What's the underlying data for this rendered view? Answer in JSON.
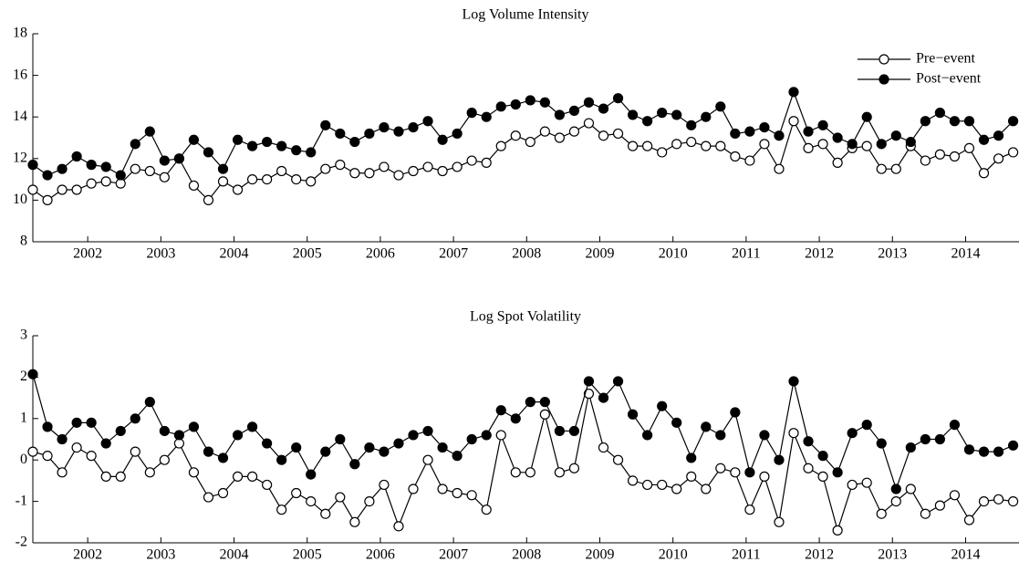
{
  "chart_data": [
    {
      "type": "line",
      "title": "Log Volume Intensity",
      "x": [
        2001.25,
        2001.45,
        2001.65,
        2001.85,
        2002.05,
        2002.25,
        2002.45,
        2002.65,
        2002.85,
        2003.05,
        2003.25,
        2003.45,
        2003.65,
        2003.85,
        2004.05,
        2004.25,
        2004.45,
        2004.65,
        2004.85,
        2005.05,
        2005.25,
        2005.45,
        2005.65,
        2005.85,
        2006.05,
        2006.25,
        2006.45,
        2006.65,
        2006.85,
        2007.05,
        2007.25,
        2007.45,
        2007.65,
        2007.85,
        2008.05,
        2008.25,
        2008.45,
        2008.65,
        2008.85,
        2009.05,
        2009.25,
        2009.45,
        2009.65,
        2009.85,
        2010.05,
        2010.25,
        2010.45,
        2010.65,
        2010.85,
        2011.05,
        2011.25,
        2011.45,
        2011.65,
        2011.85,
        2012.05,
        2012.25,
        2012.45,
        2012.65,
        2012.85,
        2013.05,
        2013.25,
        2013.45,
        2013.65,
        2013.85,
        2014.05,
        2014.25,
        2014.45,
        2014.65
      ],
      "series": [
        {
          "name": "Pre−event",
          "color": "#000000",
          "marker_fill": "#ffffff",
          "values": [
            10.5,
            10.0,
            10.5,
            10.5,
            10.8,
            10.9,
            10.8,
            11.5,
            11.4,
            11.1,
            12.0,
            10.7,
            10.0,
            10.9,
            10.5,
            11.0,
            11.0,
            11.4,
            11.0,
            10.9,
            11.5,
            11.7,
            11.3,
            11.3,
            11.6,
            11.2,
            11.4,
            11.6,
            11.4,
            11.6,
            11.9,
            11.8,
            12.6,
            13.1,
            12.8,
            13.3,
            13.0,
            13.3,
            13.7,
            13.1,
            13.2,
            12.6,
            12.6,
            12.3,
            12.7,
            12.8,
            12.6,
            12.6,
            12.1,
            11.9,
            12.7,
            11.5,
            13.8,
            12.5,
            12.7,
            11.8,
            12.5,
            12.6,
            11.5,
            11.5,
            12.6,
            11.9,
            12.2,
            12.1,
            12.5,
            11.3,
            12.0,
            12.3
          ]
        },
        {
          "name": "Post−event",
          "color": "#000000",
          "marker_fill": "#000000",
          "values": [
            11.7,
            11.2,
            11.5,
            12.1,
            11.7,
            11.6,
            11.2,
            12.7,
            13.3,
            11.9,
            12.0,
            12.9,
            12.3,
            11.5,
            12.9,
            12.6,
            12.8,
            12.6,
            12.4,
            12.3,
            13.6,
            13.2,
            12.8,
            13.2,
            13.5,
            13.3,
            13.5,
            13.8,
            12.9,
            13.2,
            14.2,
            14.0,
            14.5,
            14.6,
            14.8,
            14.7,
            14.1,
            14.3,
            14.7,
            14.4,
            14.9,
            14.1,
            13.8,
            14.2,
            14.1,
            13.6,
            14.0,
            14.5,
            13.2,
            13.3,
            13.5,
            13.1,
            15.2,
            13.3,
            13.6,
            13.0,
            12.7,
            14.0,
            12.7,
            13.1,
            12.8,
            13.8,
            14.2,
            13.8,
            13.8,
            12.9,
            13.1,
            13.8
          ]
        }
      ],
      "xlim": [
        2001.25,
        2014.73
      ],
      "xticks": [
        2002,
        2003,
        2004,
        2005,
        2006,
        2007,
        2008,
        2009,
        2010,
        2011,
        2012,
        2013,
        2014
      ],
      "ylim": [
        8,
        18
      ],
      "yticks": [
        8,
        10,
        12,
        14,
        16,
        18
      ],
      "legend": "upper right"
    },
    {
      "type": "line",
      "title": "Log Spot Volatility",
      "x": [
        2001.25,
        2001.45,
        2001.65,
        2001.85,
        2002.05,
        2002.25,
        2002.45,
        2002.65,
        2002.85,
        2003.05,
        2003.25,
        2003.45,
        2003.65,
        2003.85,
        2004.05,
        2004.25,
        2004.45,
        2004.65,
        2004.85,
        2005.05,
        2005.25,
        2005.45,
        2005.65,
        2005.85,
        2006.05,
        2006.25,
        2006.45,
        2006.65,
        2006.85,
        2007.05,
        2007.25,
        2007.45,
        2007.65,
        2007.85,
        2008.05,
        2008.25,
        2008.45,
        2008.65,
        2008.85,
        2009.05,
        2009.25,
        2009.45,
        2009.65,
        2009.85,
        2010.05,
        2010.25,
        2010.45,
        2010.65,
        2010.85,
        2011.05,
        2011.25,
        2011.45,
        2011.65,
        2011.85,
        2012.05,
        2012.25,
        2012.45,
        2012.65,
        2012.85,
        2013.05,
        2013.25,
        2013.45,
        2013.65,
        2013.85,
        2014.05,
        2014.25,
        2014.45,
        2014.65
      ],
      "series": [
        {
          "color": "#000000",
          "marker_fill": "#ffffff",
          "values": [
            0.2,
            0.1,
            -0.3,
            0.3,
            0.1,
            -0.4,
            -0.4,
            0.2,
            -0.3,
            0.0,
            0.4,
            -0.3,
            -0.9,
            -0.8,
            -0.4,
            -0.4,
            -0.6,
            -1.2,
            -0.8,
            -1.0,
            -1.3,
            -0.9,
            -1.5,
            -1.0,
            -0.6,
            -1.6,
            -0.7,
            0.0,
            -0.7,
            -0.8,
            -0.85,
            -1.2,
            0.6,
            -0.3,
            -0.3,
            1.1,
            -0.3,
            -0.2,
            1.6,
            0.3,
            0.0,
            -0.5,
            -0.6,
            -0.6,
            -0.7,
            -0.4,
            -0.7,
            -0.2,
            -0.3,
            -1.2,
            -0.4,
            -1.5,
            0.65,
            -0.2,
            -0.4,
            -1.7,
            -0.6,
            -0.55,
            -1.3,
            -1.0,
            -0.7,
            -1.3,
            -1.1,
            -0.85,
            -1.45,
            -1.0,
            -0.95,
            -1.0
          ]
        },
        {
          "color": "#000000",
          "marker_fill": "#000000",
          "values": [
            2.07,
            0.8,
            0.5,
            0.9,
            0.9,
            0.4,
            0.7,
            1.0,
            1.4,
            0.7,
            0.6,
            0.8,
            0.2,
            0.05,
            0.6,
            0.8,
            0.4,
            0.0,
            0.3,
            -0.35,
            0.2,
            0.5,
            -0.1,
            0.3,
            0.2,
            0.4,
            0.6,
            0.7,
            0.3,
            0.1,
            0.5,
            0.6,
            1.2,
            1.0,
            1.4,
            1.4,
            0.7,
            0.7,
            1.9,
            1.5,
            1.9,
            1.1,
            0.6,
            1.3,
            0.9,
            0.05,
            0.8,
            0.6,
            1.15,
            -0.3,
            0.6,
            0.0,
            1.9,
            0.45,
            0.1,
            -0.3,
            0.65,
            0.85,
            0.4,
            -0.7,
            0.3,
            0.5,
            0.5,
            0.85,
            0.25,
            0.2,
            0.2,
            0.35
          ]
        }
      ],
      "xlim": [
        2001.25,
        2014.73
      ],
      "xticks": [
        2002,
        2003,
        2004,
        2005,
        2006,
        2007,
        2008,
        2009,
        2010,
        2011,
        2012,
        2013,
        2014
      ],
      "ylim": [
        -2,
        3
      ],
      "yticks": [
        -2,
        -1,
        0,
        1,
        2,
        3
      ]
    }
  ]
}
